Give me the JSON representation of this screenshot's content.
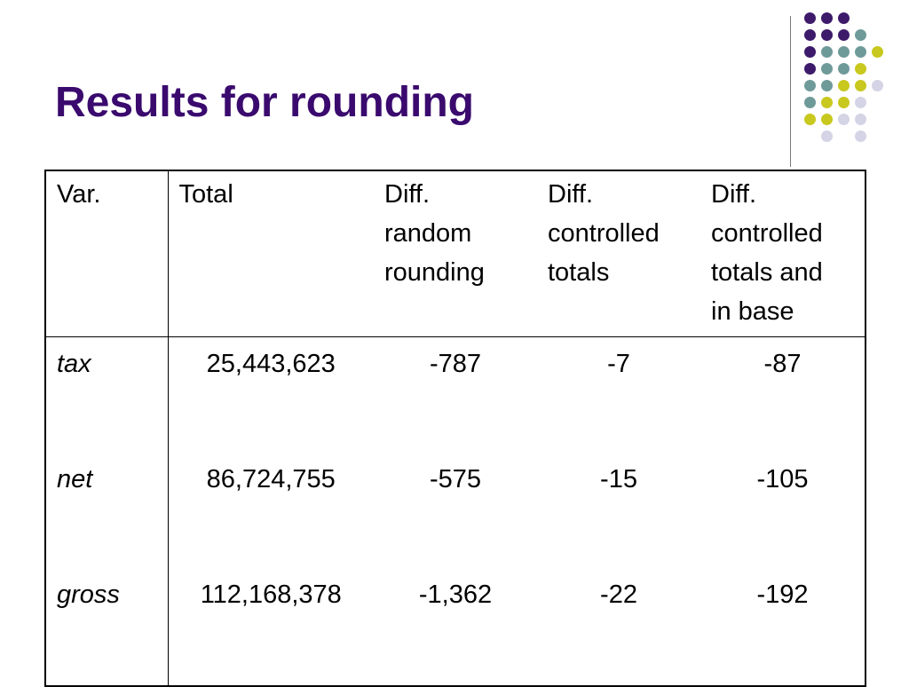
{
  "slide": {
    "title": "Results for rounding"
  },
  "decoration": {
    "divider_color": "#777777",
    "dot_colors": {
      "purple": "#3d1a6a",
      "teal": "#6f9a9a",
      "olive": "#c8c81e",
      "lavender": "#d4d4e6"
    }
  },
  "table": {
    "headers": [
      {
        "lines": [
          "Var."
        ]
      },
      {
        "lines": [
          "Total"
        ]
      },
      {
        "lines": [
          "Diff.",
          "random",
          "rounding"
        ]
      },
      {
        "lines": [
          "Diff.",
          "controlled",
          "totals"
        ]
      },
      {
        "lines": [
          "Diff.",
          "controlled",
          "totals and",
          "in base"
        ]
      }
    ],
    "rows": [
      {
        "var": "tax",
        "total": "25,443,623",
        "diff_random": "-787",
        "diff_controlled": "-7",
        "diff_controlled_base": "-87"
      },
      {
        "var": "net",
        "total": "86,724,755",
        "diff_random": "-575",
        "diff_controlled": "-15",
        "diff_controlled_base": "-105"
      },
      {
        "var": "gross",
        "total": "112,168,378",
        "diff_random": "-1,362",
        "diff_controlled": "-22",
        "diff_controlled_base": "-192"
      }
    ]
  }
}
